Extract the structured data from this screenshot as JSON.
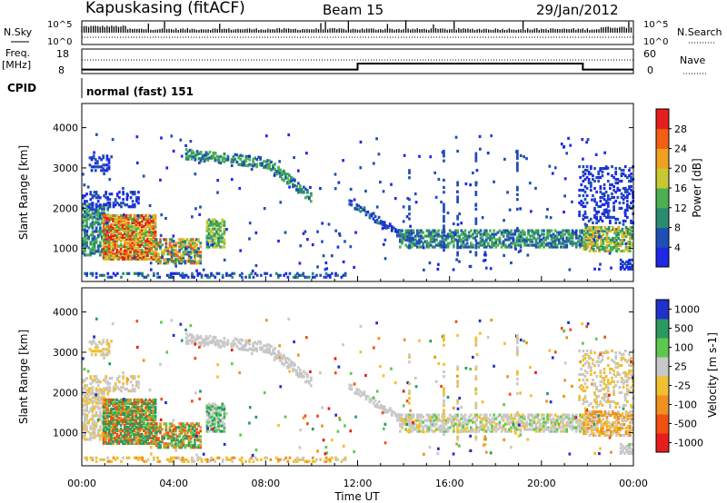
{
  "header": {
    "station": "Kapuskasing (fitACF)",
    "beam": "Beam 15",
    "date": "29/Jan/2012"
  },
  "top_panels": {
    "nsky_label": "N.Sky",
    "nsky_ticks": [
      "10^5",
      "10^0"
    ],
    "nsearch_label": "N.Search",
    "nsearch_ticks": [
      "10^5",
      "10^0"
    ],
    "freq_label": "Freq.",
    "freq_unit": "[MHz]",
    "freq_ticks": [
      18,
      8
    ],
    "nave_label": "Nave",
    "nave_ticks": [
      60,
      0
    ],
    "freq_steps": [
      {
        "t": 0,
        "v": 10.3
      },
      {
        "t": 12.0,
        "v": 13.8
      },
      {
        "t": 21.8,
        "v": 10.3
      },
      {
        "t": 24,
        "v": 10.3
      }
    ],
    "cpid_label": "CPID",
    "cpid_text": "normal (fast) 151"
  },
  "chart_data": [
    {
      "type": "heatmap",
      "name": "power",
      "ylabel": "Slant Range [km]",
      "yticks": [
        1000,
        2000,
        3000,
        4000
      ],
      "ylim": [
        180,
        4600
      ],
      "xlim": [
        0,
        24
      ],
      "colorbar_label": "Power [dB]",
      "colorbar_ticks": [
        4,
        8,
        12,
        16,
        20,
        24,
        28
      ],
      "colorbar_range": [
        0,
        32
      ],
      "colors": [
        "#1e28e6",
        "#1f4fb4",
        "#2a8c6e",
        "#4cb050",
        "#c8c832",
        "#f0a020",
        "#f06010",
        "#e61e1e"
      ]
    },
    {
      "type": "heatmap",
      "name": "velocity",
      "ylabel": "Slant Range [km]",
      "yticks": [
        1000,
        2000,
        3000,
        4000
      ],
      "ylim": [
        180,
        4600
      ],
      "xlim": [
        0,
        24
      ],
      "colorbar_label": "Velocity [m s-1]",
      "colorbar_ticks": [
        "1000",
        "500",
        "100",
        "25",
        "-25",
        "-100",
        "-500",
        "-1000"
      ],
      "colors": [
        "#2030c8",
        "#2a9a60",
        "#5cc850",
        "#c8c8c8",
        "#f0c030",
        "#f09020",
        "#f05010",
        "#e61e1e"
      ]
    }
  ],
  "xaxis": {
    "ticks": [
      "00:00",
      "04:00",
      "08:00",
      "12:00",
      "16:00",
      "20:00",
      "00:00"
    ],
    "label": "Time UT"
  }
}
